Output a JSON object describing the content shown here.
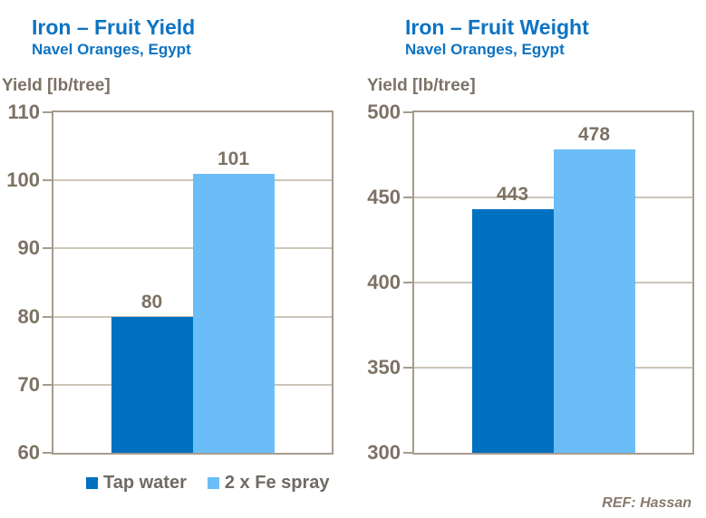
{
  "colors": {
    "title_blue": "#0d73c2",
    "axis_text": "#7c7265",
    "plot_border": "#a69c8e",
    "gridline": "#ccc5b9",
    "legend_text": "#6f6a63",
    "ref_text": "#877b6b",
    "background": "#ffffff",
    "bar_series": [
      "#0070c0",
      "#6bbdf7"
    ]
  },
  "legend": {
    "items": [
      {
        "label": "Tap water",
        "color": "#0070c0"
      },
      {
        "label": "2 x Fe spray",
        "color": "#6bbdf7"
      }
    ]
  },
  "footer": {
    "ref": "REF: Hassan"
  },
  "chart_data": [
    {
      "type": "bar",
      "title": "Iron – Fruit Yield",
      "subtitle": "Navel Oranges, Egypt",
      "ylabel": "Yield [lb/tree]",
      "categories": [
        "Tap water",
        "2 x Fe spray"
      ],
      "values": [
        80,
        101
      ],
      "ylim": [
        60,
        110
      ],
      "yticks": [
        60,
        70,
        80,
        90,
        100,
        110
      ],
      "grid": true,
      "legend_position": "bottom"
    },
    {
      "type": "bar",
      "title": "Iron – Fruit Weight",
      "subtitle": "Navel Oranges, Egypt",
      "ylabel": "Yield [lb/tree]",
      "categories": [
        "Tap water",
        "2 x Fe spray"
      ],
      "values": [
        443,
        478
      ],
      "ylim": [
        300,
        500
      ],
      "yticks": [
        300,
        350,
        400,
        450,
        500
      ],
      "grid": true,
      "legend_position": "none"
    }
  ]
}
